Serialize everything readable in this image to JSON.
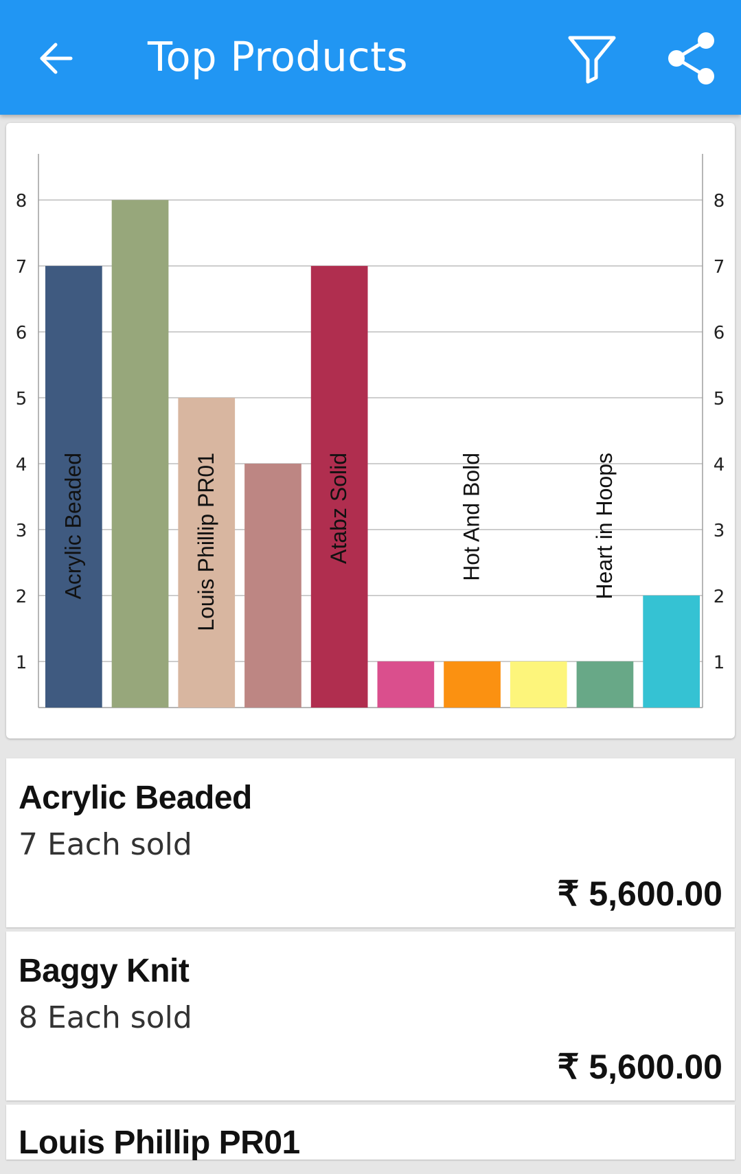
{
  "app_bar": {
    "title": "Top Products",
    "back_icon": "arrow-back-icon",
    "filter_icon": "filter-icon",
    "share_icon": "share-icon",
    "background": "#2196f3"
  },
  "chart_data": {
    "type": "bar",
    "categories": [
      "Acrylic Beaded",
      "Baggy Knit",
      "Louis Phillip PR01",
      "",
      "Atabz Solid",
      "",
      "Hot And Bold",
      "",
      "Heart in Hoops",
      ""
    ],
    "bar_labels": [
      "Acrylic Beaded",
      "",
      "Louis Phillip PR01",
      "",
      "Atabz Solid",
      "",
      "Hot And Bold",
      "",
      "Heart in Hoops",
      ""
    ],
    "values": [
      7,
      8,
      5,
      4,
      7,
      1,
      1,
      1,
      1,
      2
    ],
    "colors": [
      "#3f5a80",
      "#97a77b",
      "#d8b6a0",
      "#bd8683",
      "#b02e4f",
      "#da4f8d",
      "#fb9111",
      "#fdf57b",
      "#68a887",
      "#35c2d3"
    ],
    "y_ticks": [
      1,
      2,
      3,
      4,
      5,
      6,
      7,
      8
    ],
    "ylim": [
      0.3,
      8.7
    ],
    "grid": true,
    "legend": "none",
    "title": "",
    "xlabel": "",
    "ylabel": ""
  },
  "products": [
    {
      "name": "Acrylic Beaded",
      "sold": "7 Each sold",
      "amount": "₹ 5,600.00"
    },
    {
      "name": "Baggy Knit",
      "sold": "8 Each sold",
      "amount": "₹ 5,600.00"
    },
    {
      "name": "Louis Phillip PR01",
      "sold": "",
      "amount": ""
    }
  ]
}
